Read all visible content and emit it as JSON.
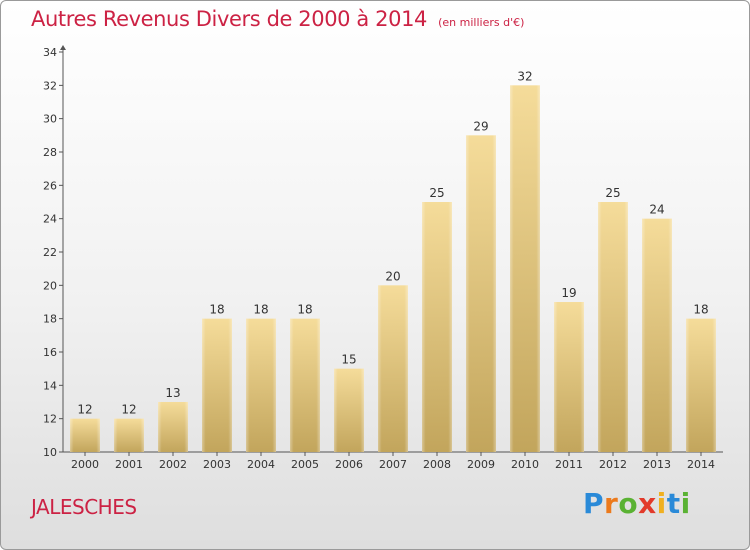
{
  "chart_data": {
    "type": "bar",
    "title": "Autres Revenus Divers de 2000 à 2014",
    "unit": "(en milliers d'€)",
    "categories": [
      "2000",
      "2001",
      "2002",
      "2003",
      "2004",
      "2005",
      "2006",
      "2007",
      "2008",
      "2009",
      "2010",
      "2011",
      "2012",
      "2013",
      "2014"
    ],
    "values": [
      12,
      12,
      13,
      18,
      18,
      18,
      15,
      20,
      25,
      29,
      32,
      19,
      25,
      24,
      18
    ],
    "ylim": [
      10,
      34
    ],
    "yticks": [
      10,
      12,
      14,
      16,
      18,
      20,
      22,
      24,
      26,
      28,
      30,
      32,
      34
    ],
    "grid": false,
    "legend": "none",
    "bar_color_top": "#f5dc9a",
    "bar_color_bottom": "#c2a55c"
  },
  "location": "JALESCHES",
  "brand": [
    "P",
    "r",
    "o",
    "x",
    "i",
    "t",
    "i"
  ],
  "colors": {
    "title": "#cc2244",
    "axis": "#555555"
  }
}
